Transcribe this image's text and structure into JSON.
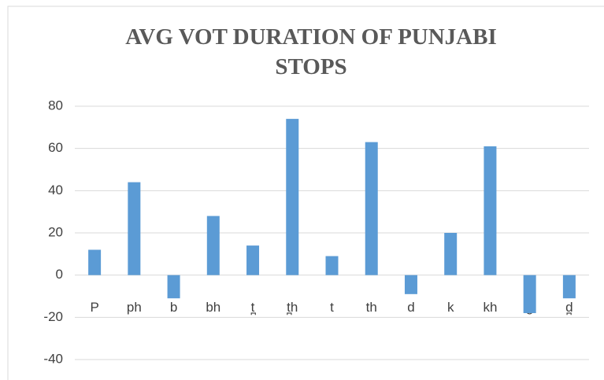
{
  "chart_data": {
    "type": "bar",
    "title": "AVG VOT DURATION OF PUNJABI STOPS",
    "categories": [
      "P",
      "ph",
      "b",
      "bh",
      "t̪",
      "t̪h",
      "t",
      "th",
      "d",
      "k",
      "kh",
      "g",
      "d̪"
    ],
    "values": [
      12,
      44,
      -11,
      28,
      14,
      74,
      9,
      63,
      -9,
      20,
      61,
      -18,
      -11
    ],
    "color": "#5b9bd5",
    "ylim": [
      -40,
      80
    ],
    "yticks": [
      -40,
      -20,
      0,
      20,
      40,
      60,
      80
    ],
    "grid": true
  }
}
